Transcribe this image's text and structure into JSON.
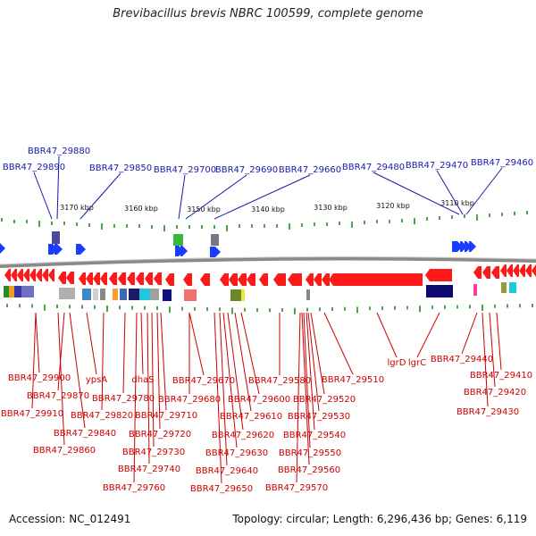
{
  "title": "Brevibacillus brevis NBRC 100599, complete genome",
  "footer": {
    "accession": "Accession: NC_012491",
    "stats": "Topology: circular; Length: 6,296,436 bp; Genes: 6,119"
  },
  "colors": {
    "upper_label": "#1a1aa8",
    "lower_label": "#cc0000",
    "forward_gene": "#1a3cff",
    "reverse_gene": "#ff1a1a",
    "backbone": "#8a8a8a",
    "tick": "#1e8c1e"
  },
  "scale_ticks": [
    "3170 kbp",
    "3160 kbp",
    "3150 kbp",
    "3140 kbp",
    "3130 kbp",
    "3120 kbp",
    "3110 kbp"
  ],
  "upper_labels": [
    "BBR47_29880",
    "BBR47_29890",
    "BBR47_29850",
    "BBR47_29700",
    "BBR47_29690",
    "BBR47_29660",
    "BBR47_29480",
    "BBR47_29470",
    "BBR47_29460"
  ],
  "lower_labels": [
    "BBR47_29900",
    "BBR47_29870",
    "BBR47_29910",
    "ypsA",
    "BBR47_29780",
    "BBR47_29820",
    "BBR47_29840",
    "BBR47_29860",
    "dhaS",
    "BBR47_29710",
    "BBR47_29720",
    "BBR47_29730",
    "BBR47_29740",
    "BBR47_29760",
    "BBR47_29670",
    "BBR47_29680",
    "BBR47_29610",
    "BBR47_29620",
    "BBR47_29630",
    "BBR47_29640",
    "BBR47_29650",
    "BBR47_29600",
    "BBR47_29580",
    "BBR47_29520",
    "BBR47_29530",
    "BBR47_29540",
    "BBR47_29550",
    "BBR47_29560",
    "BBR47_29570",
    "BBR47_29510",
    "lgrD",
    "lgrC",
    "BBR47_29440",
    "BBR47_29410",
    "BBR47_29420",
    "BBR47_29430"
  ]
}
